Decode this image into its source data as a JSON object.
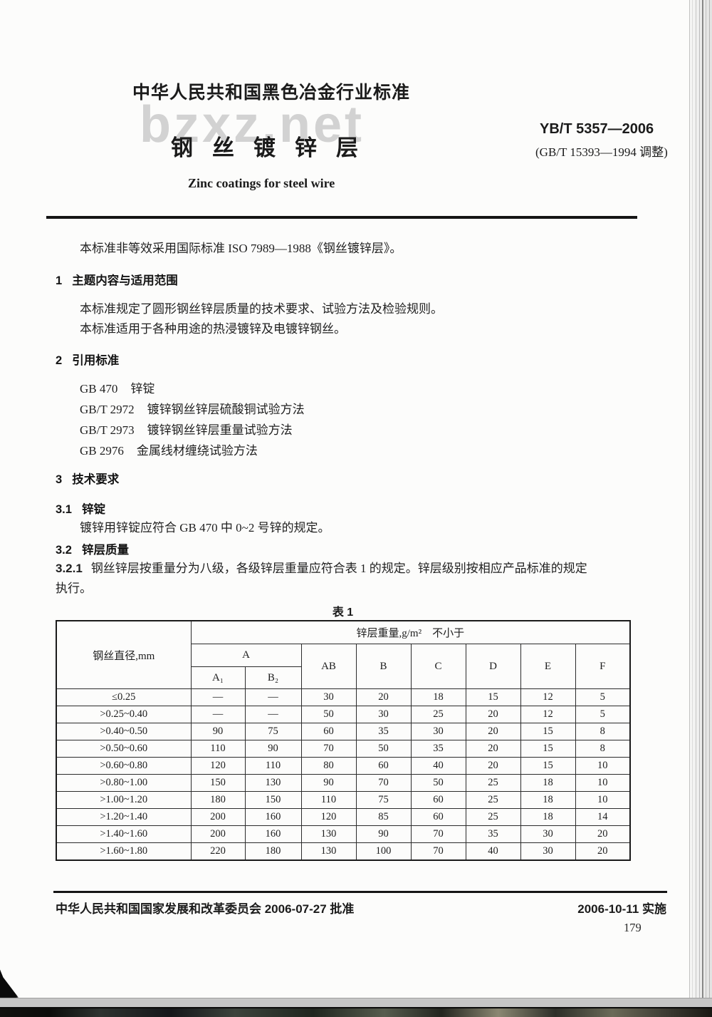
{
  "page": {
    "watermark": "bzxz.net",
    "watermark_color": "#d2d2d2",
    "page_number": "179"
  },
  "header": {
    "industry_standard_label": "中华人民共和国黑色冶金行业标准",
    "title_cn": "钢丝镀锌层",
    "title_en": "Zinc coatings for steel wire",
    "standard_code": "YB/T 5357—2006",
    "standard_note": "(GB/T 15393—1994 调整)"
  },
  "intro": "本标准非等效采用国际标准 ISO 7989—1988《钢丝镀锌层》。",
  "sections": {
    "s1": {
      "number": "1",
      "title": "主题内容与适用范围",
      "p1": "本标准规定了圆形钢丝锌层质量的技术要求、试验方法及检验规则。",
      "p2": "本标准适用于各种用途的热浸镀锌及电镀锌钢丝。"
    },
    "s2": {
      "number": "2",
      "title": "引用标准",
      "references": [
        {
          "code": "GB 470",
          "name": "锌锭"
        },
        {
          "code": "GB/T 2972",
          "name": "镀锌钢丝锌层硫酸铜试验方法"
        },
        {
          "code": "GB/T 2973",
          "name": "镀锌钢丝锌层重量试验方法"
        },
        {
          "code": "GB 2976",
          "name": "金属线材缠绕试验方法"
        }
      ]
    },
    "s3": {
      "number": "3",
      "title": "技术要求",
      "s31": {
        "number": "3.1",
        "title": "锌锭",
        "body": "镀锌用锌锭应符合 GB 470 中 0~2 号锌的规定。"
      },
      "s32": {
        "number": "3.2",
        "title": "锌层质量"
      },
      "s321": {
        "number": "3.2.1",
        "body_line1": "钢丝锌层按重量分为八级，各级锌层重量应符合表 1 的规定。锌层级别按相应产品标准的规定",
        "body_line2": "执行。"
      }
    }
  },
  "table": {
    "caption": "表 1",
    "diameter_header": "钢丝直径,mm",
    "weight_header": "锌层重量,g/m²　不小于",
    "group_a_label": "A",
    "sub_labels": [
      "A₁",
      "B₂"
    ],
    "class_labels": [
      "AB",
      "B",
      "C",
      "D",
      "E",
      "F"
    ],
    "rows": [
      {
        "diameter": "≤0.25",
        "values": [
          "—",
          "—",
          "30",
          "20",
          "18",
          "15",
          "12",
          "5"
        ]
      },
      {
        "diameter": ">0.25~0.40",
        "values": [
          "—",
          "—",
          "50",
          "30",
          "25",
          "20",
          "12",
          "5"
        ]
      },
      {
        "diameter": ">0.40~0.50",
        "values": [
          "90",
          "75",
          "60",
          "35",
          "30",
          "20",
          "15",
          "8"
        ]
      },
      {
        "diameter": ">0.50~0.60",
        "values": [
          "110",
          "90",
          "70",
          "50",
          "35",
          "20",
          "15",
          "8"
        ]
      },
      {
        "diameter": ">0.60~0.80",
        "values": [
          "120",
          "110",
          "80",
          "60",
          "40",
          "20",
          "15",
          "10"
        ]
      },
      {
        "diameter": ">0.80~1.00",
        "values": [
          "150",
          "130",
          "90",
          "70",
          "50",
          "25",
          "18",
          "10"
        ]
      },
      {
        "diameter": ">1.00~1.20",
        "values": [
          "180",
          "150",
          "110",
          "75",
          "60",
          "25",
          "18",
          "10"
        ]
      },
      {
        "diameter": ">1.20~1.40",
        "values": [
          "200",
          "160",
          "120",
          "85",
          "60",
          "25",
          "18",
          "14"
        ]
      },
      {
        "diameter": ">1.40~1.60",
        "values": [
          "200",
          "160",
          "130",
          "90",
          "70",
          "35",
          "30",
          "20"
        ]
      },
      {
        "diameter": ">1.60~1.80",
        "values": [
          "220",
          "180",
          "130",
          "100",
          "70",
          "40",
          "30",
          "20"
        ]
      }
    ]
  },
  "footer": {
    "approval": "中华人民共和国国家发展和改革委员会 2006-07-27 批准",
    "implementation": "2006-10-11 实施"
  }
}
